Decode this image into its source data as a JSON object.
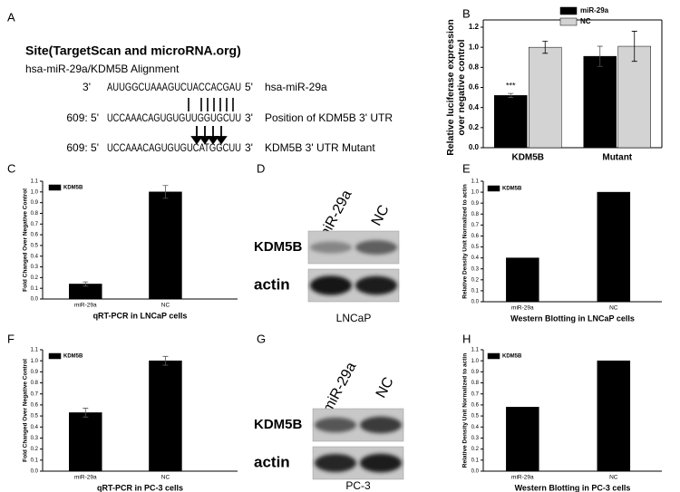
{
  "panel_a": {
    "panel": "A",
    "title": "Site(TargetScan and microRNA.org)",
    "subtitle": "hsa-miR-29a/KDM5B Alignment",
    "rows": [
      {
        "prefix": "3'",
        "sequence": "AUUGGCUAAAGUCUACCACGAU",
        "suffix": "5'",
        "label": "hsa-miR-29a"
      },
      {
        "prefix": "609: 5'",
        "sequence": "UCCAAACAGUGUGUUGGUGCUU",
        "suffix": "3'",
        "label": "Position of KDM5B 3' UTR"
      },
      {
        "prefix": "609: 5'",
        "sequence": "UCCAAACAGUGUGUCATGGCUU",
        "suffix": "3'",
        "label": "KDM5B 3' UTR Mutant"
      }
    ]
  },
  "blots": [
    {
      "panel": "D",
      "lanes": [
        "miR-29a",
        "NC"
      ],
      "rows": [
        "KDM5B",
        "actin"
      ],
      "cell_line": "LNCaP"
    },
    {
      "panel": "G",
      "lanes": [
        "miR-29a",
        "NC"
      ],
      "rows": [
        "KDM5B",
        "actin"
      ],
      "cell_line": "PC-3"
    }
  ],
  "chart_data": [
    {
      "panel": "B",
      "type": "bar",
      "ylabel": [
        "Relative luciferase expression",
        "over negative control"
      ],
      "categories": [
        "KDM5B",
        "Mutant"
      ],
      "series": [
        {
          "name": "miR-29a",
          "color": "#000000",
          "values": [
            0.52,
            0.91
          ],
          "errors": [
            0.02,
            0.1
          ],
          "annotations": [
            "***",
            null
          ]
        },
        {
          "name": "NC",
          "color": "#d3d3d3",
          "values": [
            1.0,
            1.01
          ],
          "errors": [
            0.06,
            0.15
          ]
        }
      ],
      "ylim": [
        0,
        1.2
      ],
      "yticks": [
        {
          "value": 0,
          "label": "0.0"
        },
        0.2,
        0.4,
        0.6,
        0.8,
        {
          "value": 1,
          "label": "1.0"
        },
        1.2
      ],
      "legend": "upper right"
    },
    {
      "panel": "C",
      "type": "bar",
      "xlabel": "qRT-PCR in LNCaP cells",
      "ylabel": [
        "Fold Changed Over Negative Control"
      ],
      "categories": [
        "miR-29a",
        "NC"
      ],
      "series": [
        {
          "name": "KDM5B",
          "color": "#000000",
          "values": [
            0.14,
            1.0
          ],
          "errors": [
            0.02,
            0.06
          ]
        }
      ],
      "ylim": [
        0,
        1.1
      ],
      "yticks": [
        {
          "value": 0,
          "label": "0.0"
        },
        0.1,
        0.2,
        0.3,
        0.4,
        0.5,
        0.6,
        0.7,
        0.8,
        0.9,
        {
          "value": 1,
          "label": "1.0"
        },
        1.1
      ],
      "legend": "upper left"
    },
    {
      "panel": "E",
      "type": "bar",
      "xlabel": "Western Blotting in LNCaP cells",
      "ylabel": [
        "Relative Density Unit Normalized  to actin"
      ],
      "categories": [
        "miR-29a",
        "NC"
      ],
      "series": [
        {
          "name": "KDM5B",
          "color": "#000000",
          "values": [
            0.4,
            1.0
          ]
        }
      ],
      "ylim": [
        0,
        1.1
      ],
      "yticks": [
        {
          "value": 0,
          "label": "0.0"
        },
        0.1,
        0.2,
        0.3,
        0.4,
        0.5,
        0.6,
        0.7,
        0.8,
        0.9,
        {
          "value": 1,
          "label": "1.0"
        },
        1.1
      ],
      "legend": "upper left"
    },
    {
      "panel": "F",
      "type": "bar",
      "xlabel": "qRT-PCR in PC-3 cells",
      "ylabel": [
        "Fold Changed Over Negative Control"
      ],
      "categories": [
        "miR-29a",
        "NC"
      ],
      "series": [
        {
          "name": "KDM5B",
          "color": "#000000",
          "values": [
            0.53,
            1.0
          ],
          "errors": [
            0.04,
            0.04
          ]
        }
      ],
      "ylim": [
        0,
        1.1
      ],
      "yticks": [
        {
          "value": 0,
          "label": "0.0"
        },
        0.1,
        0.2,
        0.3,
        0.4,
        0.5,
        0.6,
        0.7,
        0.8,
        0.9,
        {
          "value": 1,
          "label": "1.0"
        },
        1.1
      ],
      "legend": "upper left"
    },
    {
      "panel": "H",
      "type": "bar",
      "xlabel": "Western Blotting in PC-3 cells",
      "ylabel": [
        "Relative Density Unit Normalized  to actin"
      ],
      "categories": [
        "miR-29a",
        "NC"
      ],
      "series": [
        {
          "name": "KDM5B",
          "color": "#000000",
          "values": [
            0.58,
            1.0
          ]
        }
      ],
      "ylim": [
        0,
        1.1
      ],
      "yticks": [
        {
          "value": 0,
          "label": "0.0"
        },
        0.1,
        0.2,
        0.3,
        0.4,
        0.5,
        0.6,
        0.7,
        0.8,
        0.9,
        {
          "value": 1,
          "label": "1.0"
        },
        1.1
      ],
      "legend": "upper left"
    }
  ]
}
